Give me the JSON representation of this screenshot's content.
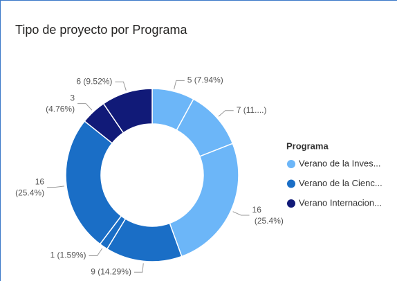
{
  "chart_data": {
    "type": "donut",
    "title": "Tipo de proyecto por Programa",
    "legend_title": "Programa",
    "series": [
      {
        "name": "Verano de la Inves...",
        "color": "#6cb6f8",
        "values": [
          5,
          7,
          16
        ],
        "value_labels": [
          "5 (7.94%)",
          "7 (11....)",
          "16 (25.4%)"
        ]
      },
      {
        "name": "Verano de la Cienc...",
        "color": "#1a6ec6",
        "values": [
          9,
          1,
          16
        ],
        "value_labels": [
          "9 (14.29%)",
          "1 (1.59%)",
          "16 (25.4%)"
        ]
      },
      {
        "name": "Verano Internacion...",
        "color": "#111a78",
        "values": [
          3,
          6
        ],
        "value_labels": [
          "3 (4.76%)",
          "6 (9.52%)"
        ]
      }
    ]
  }
}
